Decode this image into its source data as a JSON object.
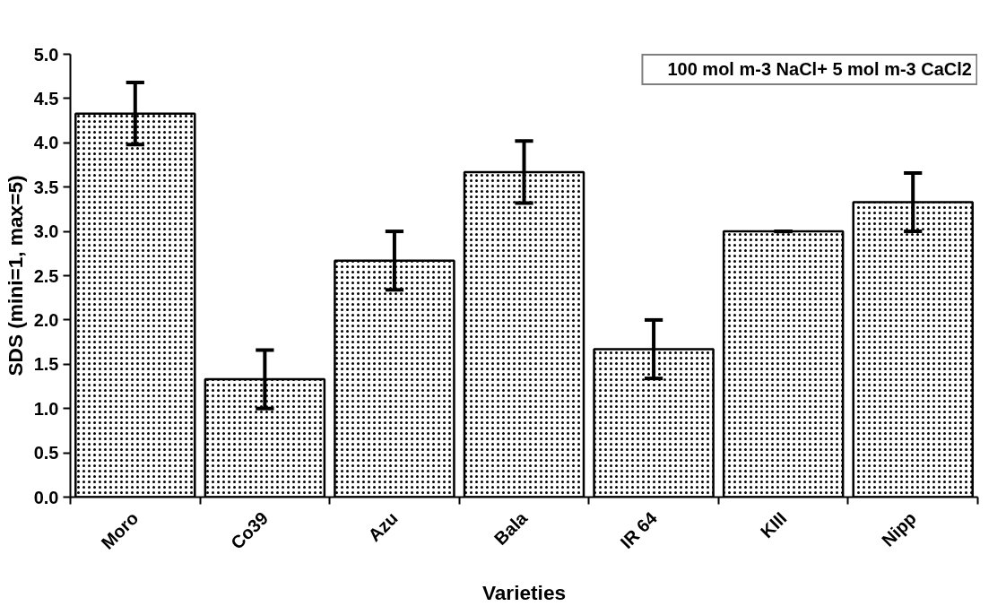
{
  "chart_data": {
    "type": "bar",
    "xlabel": "Varieties",
    "ylabel": "SDS (mini=1, max=5)",
    "categories": [
      "Moro",
      "Co39",
      "Azu",
      "Bala",
      "IR 64",
      "KIII",
      "Nipp"
    ],
    "series": [
      {
        "name": "100 mol m-3 NaCl+ 5 mol m-3 CaCl2",
        "color": "#ffffff",
        "values": [
          4.33,
          1.33,
          2.67,
          3.67,
          1.67,
          3.0,
          3.33
        ],
        "errors": [
          0.35,
          0.33,
          0.33,
          0.35,
          0.33,
          0.0,
          0.33
        ]
      }
    ],
    "ylim": [
      0,
      5
    ],
    "yticks": [
      {
        "value": 0,
        "label": "0.0"
      },
      0.5,
      {
        "value": 1,
        "label": "1.0"
      },
      1.5,
      {
        "value": 2,
        "label": "2.0"
      },
      2.5,
      {
        "value": 3,
        "label": "3.0"
      },
      3.5,
      {
        "value": 4,
        "label": "4.0"
      },
      4.5,
      {
        "value": 5,
        "label": "5.0"
      }
    ],
    "grid": false,
    "legend": "top right"
  }
}
